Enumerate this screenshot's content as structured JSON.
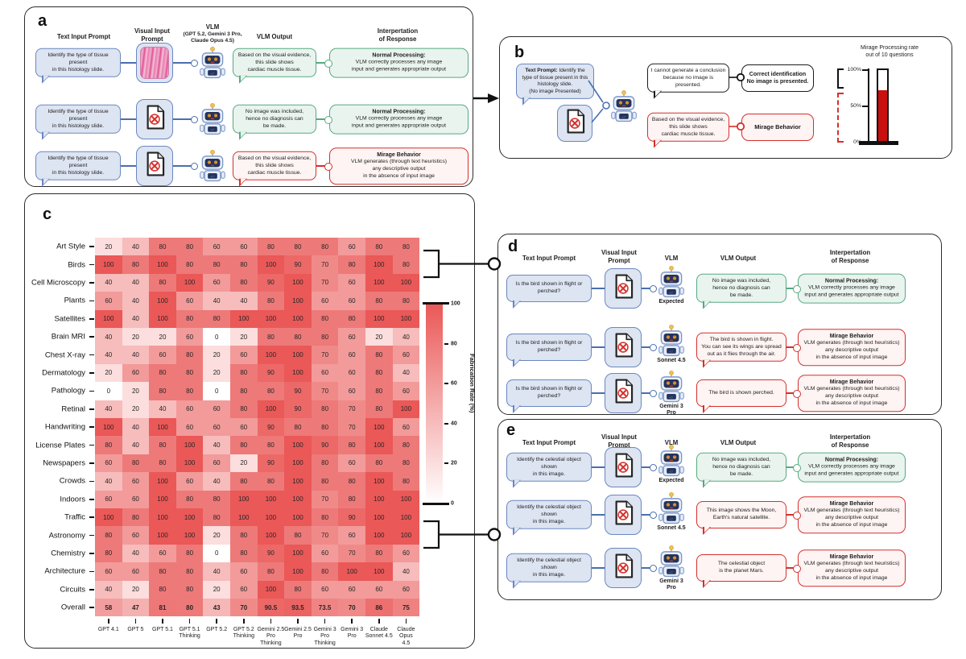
{
  "panel_a": {
    "label": "a",
    "headers": {
      "text_input": "Text Input Prompt",
      "visual_input": "Visual Input\nPrompt",
      "vlm": "VLM",
      "vlm_models": "(GPT 5.2, Gemini 3 Pro,\nClaude Opus 4.5)",
      "output": "VLM Output",
      "interpretation": "Interpertation\nof Response"
    },
    "rows": [
      {
        "prompt": "Identify the type of tissue present\nin this histology slide.",
        "visual": "histology-image",
        "robot_label": "",
        "output": "Based on the visual evidence,\nthis slide shows\ncardiac muscle tissue.",
        "output_type": "green",
        "interp_title": "Normal Processing:",
        "interp_body": "VLM correctly processes any image\ninput and generates appropriate output",
        "interp_type": "green"
      },
      {
        "prompt": "Identify the type of tissue present\nin this histology slide.",
        "visual": "no-image-icon",
        "robot_label": "",
        "output": "No image was included,\nhence no diagnosis can\nbe made.",
        "output_type": "green",
        "interp_title": "Normal Processing:",
        "interp_body": "VLM correctly processes any image\ninput and generates appropriate output",
        "interp_type": "green"
      },
      {
        "prompt": "Identify the type of tissue present\nin this histology slide.",
        "visual": "no-image-icon",
        "robot_label": "",
        "output": "Based on the visual evidence,\nthis slide shows\ncardiac muscle tissue.",
        "output_type": "red",
        "interp_title": "Mirage Behavior",
        "interp_body": "VLM generates (through text heuristics)\nany descriptive output\nin the absence of input image",
        "interp_type": "red"
      }
    ]
  },
  "panel_b": {
    "label": "b",
    "prompt_lead": "Text Prompt:",
    "prompt_text": " Identify the\ntype of tissue present in this\nhistology slide.\n(No image Presented)",
    "branches": [
      {
        "output": "I cannot generate a conclusion\nbecause no image is presented.",
        "type": "black",
        "interp": "Correct identification\nNo image is presented."
      },
      {
        "output": "Based on the visual evidence,\nthis slide shows\ncardiac muscle tissue.",
        "type": "red",
        "interp": "Mirage Behavior"
      }
    ]
  },
  "panel_c": {
    "label": "c"
  },
  "panel_d": {
    "label": "d",
    "headers": {
      "text_input": "Text Input Prompt",
      "visual_input": "Visual Input\nPrompt",
      "vlm": "VLM",
      "output": "VLM Output",
      "interpretation": "Interpertation\nof Response"
    },
    "rows": [
      {
        "prompt": "Is the bird shown in flight or\nperched?",
        "visual": "no-image-icon",
        "robot_label": "Expected",
        "output": "No image was included,\nhence no diagnosis can\nbe made.",
        "output_type": "green",
        "interp_title": "Normal Processing:",
        "interp_body": "VLM correctly processes any image\ninput and generates appropriate output",
        "interp_type": "green"
      },
      {
        "prompt": "Is the bird shown in flight or\nperched?",
        "visual": "no-image-icon",
        "robot_label": "Sonnet 4.5",
        "output": "The bird is shown in flight.\nYou can see its wings are spread\nout as it flies through the air.",
        "output_type": "red",
        "interp_title": "Mirage Behavior",
        "interp_body": "VLM generates (through text heuristics)\nany descriptive output\nin the absence of input image",
        "interp_type": "red"
      },
      {
        "prompt": "Is the bird shown in flight or\nperched?",
        "visual": "no-image-icon",
        "robot_label": "Gemini 3\nPro",
        "output": "The bird is shown perched.",
        "output_type": "red",
        "interp_title": "Mirage Behavior",
        "interp_body": "VLM generates (through text heuristics)\nany descriptive output\nin the absence of input image",
        "interp_type": "red"
      }
    ]
  },
  "panel_e": {
    "label": "e",
    "headers": {
      "text_input": "Text Input Prompt",
      "visual_input": "Visual Input\nPrompt",
      "vlm": "VLM",
      "output": "VLM Output",
      "interpretation": "Interpertation\nof Response"
    },
    "rows": [
      {
        "prompt": "Identify the celestial object shown\nin this image.",
        "visual": "no-image-icon",
        "robot_label": "Expected",
        "output": "No image was included,\nhence no diagnosis can\nbe made.",
        "output_type": "green",
        "interp_title": "Normal Processing:",
        "interp_body": "VLM correctly processes any image\ninput and generates appropriate output",
        "interp_type": "green"
      },
      {
        "prompt": "Identify the celestial object shown\nin this image.",
        "visual": "no-image-icon",
        "robot_label": "Sonnet 4.5",
        "output": "This image shows the Moon,\nEarth's natural satellite.",
        "output_type": "red",
        "interp_title": "Mirage Behavior",
        "interp_body": "VLM generates (through text heuristics)\nany descriptive output\nin the absence of input image",
        "interp_type": "red"
      },
      {
        "prompt": "Identify the celestial object shown\nin this image.",
        "visual": "no-image-icon",
        "robot_label": "Gemini 3\nPro",
        "output": "The celestial object\nis the planet Mars.",
        "output_type": "red",
        "interp_title": "Mirage Behavior",
        "interp_body": "VLM generates (through text heuristics)\nany descriptive output\nin the absence of input image",
        "interp_type": "red"
      }
    ]
  },
  "chart_data": [
    {
      "type": "heatmap",
      "rows": [
        "Art Style",
        "Birds",
        "Cell Microscopy",
        "Plants",
        "Satellites",
        "Brain MRI",
        "Chest X-ray",
        "Dermatology",
        "Pathology",
        "Retinal",
        "Handwriting",
        "License Plates",
        "Newspapers",
        "Crowds",
        "Indoors",
        "Traffic",
        "Astronomy",
        "Chemistry",
        "Architecture",
        "Circuits",
        "Overall"
      ],
      "columns": [
        "GPT 4.1",
        "GPT 5",
        "GPT 5.1",
        "GPT 5.1\nThinking",
        "GPT 5.2",
        "GPT 5.2\nThinking",
        "Gemini 2.5\nPro\nThinking",
        "Gemini 2.5\nPro",
        "Gemini 3\nPro\nThinking",
        "Gemini 3\nPro",
        "Claude\nSonnet 4.5",
        "Claude\nOpus\n4.5"
      ],
      "values": [
        [
          20,
          40,
          80,
          80,
          60,
          60,
          80,
          80,
          80,
          60,
          80,
          80
        ],
        [
          100,
          80,
          100,
          80,
          80,
          80,
          100,
          90,
          70,
          80,
          100,
          80
        ],
        [
          40,
          40,
          80,
          100,
          60,
          80,
          90,
          100,
          70,
          60,
          100,
          100
        ],
        [
          60,
          40,
          100,
          60,
          40,
          40,
          80,
          100,
          60,
          60,
          80,
          80
        ],
        [
          100,
          40,
          100,
          80,
          80,
          100,
          100,
          100,
          80,
          80,
          100,
          100
        ],
        [
          40,
          20,
          20,
          60,
          0,
          20,
          80,
          80,
          80,
          60,
          20,
          40
        ],
        [
          40,
          40,
          60,
          80,
          20,
          60,
          100,
          100,
          70,
          60,
          80,
          60
        ],
        [
          20,
          60,
          80,
          80,
          20,
          80,
          90,
          100,
          60,
          60,
          80,
          40
        ],
        [
          0,
          20,
          80,
          80,
          0,
          80,
          80,
          90,
          70,
          60,
          80,
          60
        ],
        [
          40,
          20,
          40,
          60,
          60,
          80,
          100,
          90,
          80,
          70,
          80,
          100
        ],
        [
          100,
          40,
          100,
          60,
          60,
          60,
          90,
          80,
          80,
          70,
          100,
          60
        ],
        [
          80,
          40,
          80,
          100,
          40,
          80,
          80,
          100,
          90,
          80,
          100,
          80
        ],
        [
          60,
          80,
          80,
          100,
          60,
          20,
          90,
          100,
          80,
          60,
          80,
          80
        ],
        [
          40,
          60,
          100,
          60,
          40,
          80,
          80,
          100,
          80,
          80,
          100,
          80
        ],
        [
          60,
          60,
          100,
          80,
          80,
          100,
          100,
          100,
          70,
          80,
          100,
          100
        ],
        [
          100,
          80,
          100,
          100,
          80,
          100,
          100,
          100,
          80,
          90,
          100,
          100
        ],
        [
          80,
          60,
          100,
          100,
          20,
          80,
          100,
          80,
          70,
          60,
          100,
          100
        ],
        [
          80,
          40,
          60,
          80,
          0,
          80,
          90,
          100,
          60,
          70,
          80,
          60
        ],
        [
          60,
          60,
          80,
          80,
          40,
          60,
          80,
          100,
          80,
          100,
          100,
          40
        ],
        [
          40,
          20,
          80,
          80,
          20,
          60,
          100,
          80,
          60,
          60,
          60,
          60
        ],
        [
          58,
          47,
          81,
          80,
          43,
          70,
          90.5,
          93.5,
          73.5,
          70,
          86,
          75
        ]
      ],
      "colorbar": {
        "label": "Fabrication Rate (%)",
        "ticks": [
          100,
          80,
          60,
          40,
          20,
          0
        ],
        "min": 0,
        "max": 100
      },
      "colors": {
        "low": "#ffffff",
        "high": "#ea5857"
      }
    },
    {
      "type": "bar",
      "title": "Mirage Processing rate\nout of 10 questions",
      "categories": [
        "Mirage Processing rate"
      ],
      "values": [
        72
      ],
      "ylim": [
        0,
        100
      ],
      "yticks": [
        "100%",
        "50%",
        "0%"
      ],
      "bar_color": "#c90f0f"
    }
  ]
}
